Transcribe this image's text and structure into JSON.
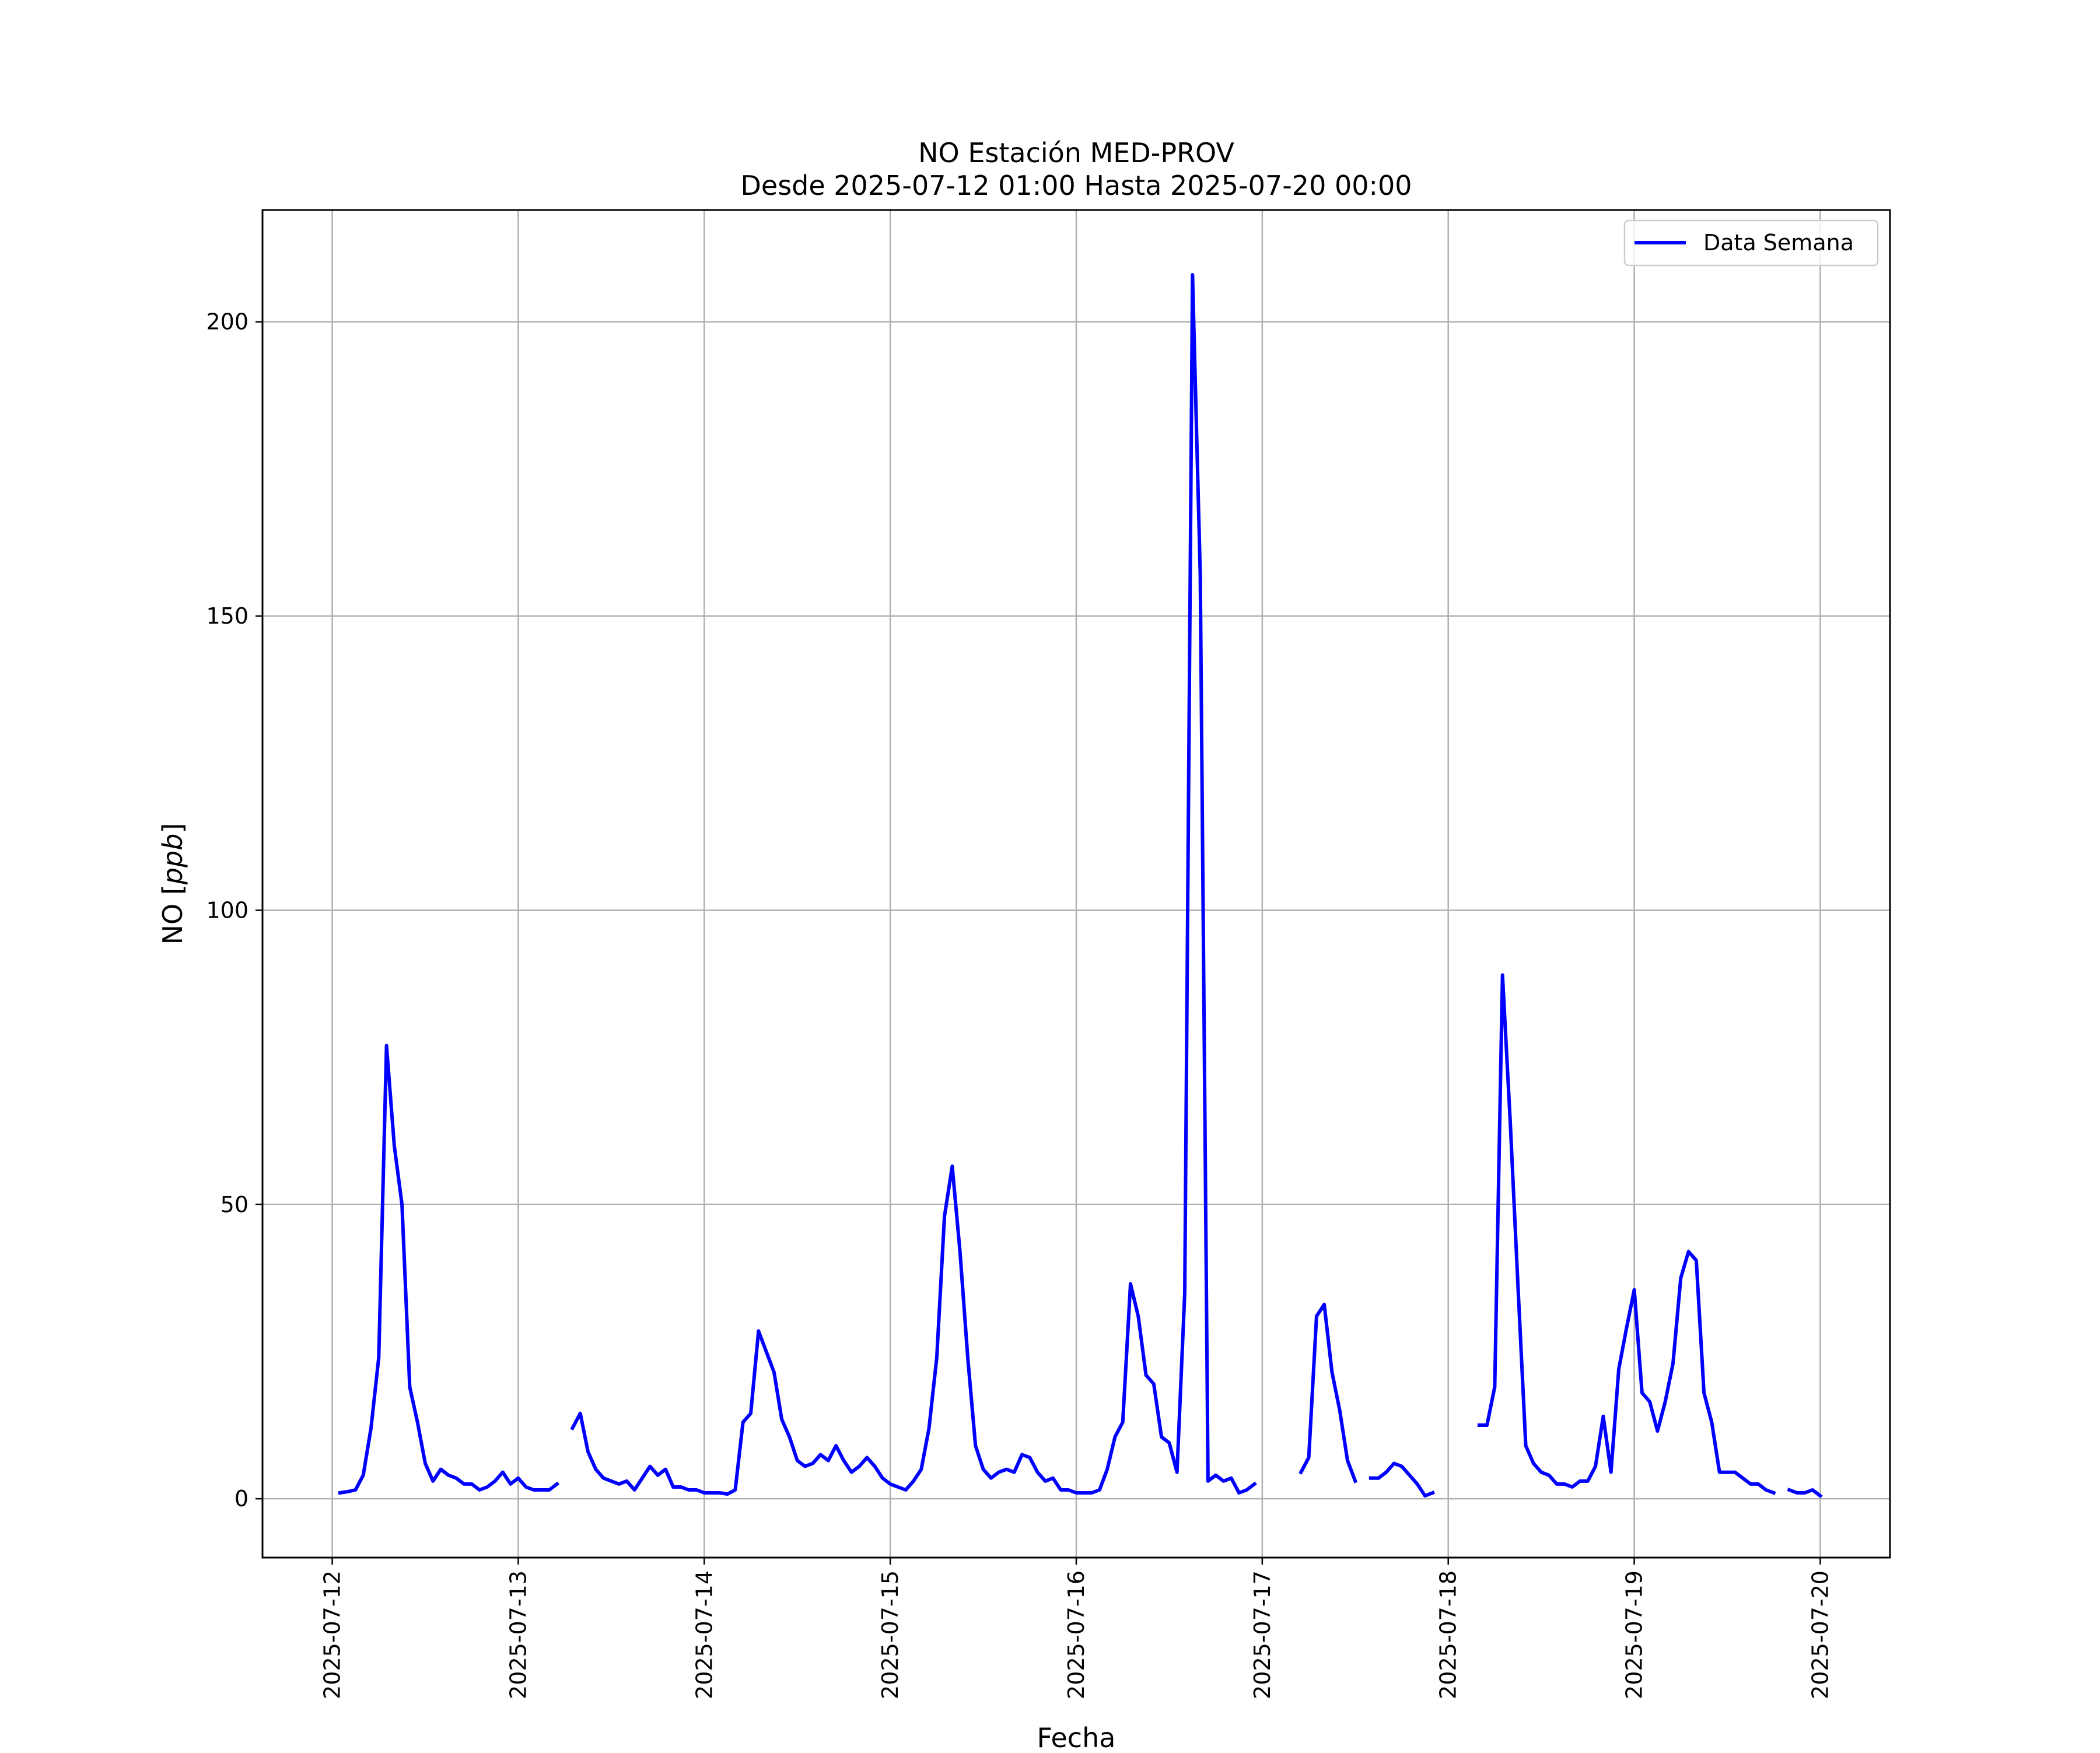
{
  "chart_data": {
    "type": "line",
    "title": "NO Estación MED-PROV",
    "subtitle": "Desde 2025-07-12 01:00 Hasta 2025-07-20 00:00",
    "xlabel": "Fecha",
    "ylabel": "NO [ppb]",
    "ylabel_main": "NO [",
    "ylabel_unit": "ppb",
    "ylabel_close": "]",
    "x_start": "2025-07-12 00:00",
    "xlim": [
      "2025-07-11 15:00",
      "2025-07-20 09:00"
    ],
    "ylim": [
      -10,
      219
    ],
    "x_ticks": [
      "2025-07-12",
      "2025-07-13",
      "2025-07-14",
      "2025-07-15",
      "2025-07-16",
      "2025-07-17",
      "2025-07-18",
      "2025-07-19",
      "2025-07-20"
    ],
    "y_ticks": [
      0,
      50,
      100,
      150,
      200
    ],
    "grid": true,
    "legend_position": "top-right",
    "line_color": "#0000ff",
    "series": [
      {
        "name": "Data Semana",
        "hours": [
          1,
          2,
          3,
          4,
          5,
          6,
          7,
          8,
          9,
          10,
          11,
          12,
          13,
          14,
          15,
          16,
          17,
          18,
          19,
          20,
          21,
          22,
          23,
          24,
          25,
          26,
          27,
          28,
          29,
          30,
          31,
          32,
          33,
          34,
          35,
          36,
          37,
          38,
          39,
          40,
          41,
          42,
          43,
          44,
          45,
          46,
          47,
          48,
          49,
          50,
          51,
          52,
          53,
          54,
          55,
          56,
          57,
          58,
          59,
          60,
          61,
          62,
          63,
          64,
          65,
          66,
          67,
          68,
          69,
          70,
          71,
          72,
          73,
          74,
          75,
          76,
          77,
          78,
          79,
          80,
          81,
          82,
          83,
          84,
          85,
          86,
          87,
          88,
          89,
          90,
          91,
          92,
          93,
          94,
          95,
          96,
          97,
          98,
          99,
          100,
          101,
          102,
          103,
          104,
          105,
          106,
          107,
          108,
          109,
          110,
          111,
          112,
          113,
          114,
          115,
          116,
          117,
          118,
          119,
          120,
          121,
          122,
          123,
          124,
          125,
          126,
          127,
          128,
          129,
          130,
          131,
          132,
          133,
          134,
          135,
          136,
          137,
          138,
          139,
          140,
          141,
          142,
          143,
          144,
          145,
          146,
          147,
          148,
          149,
          150,
          151,
          152,
          153,
          154,
          155,
          156,
          157,
          158,
          159,
          160,
          161,
          162,
          163,
          164,
          165,
          166,
          167,
          168,
          169,
          170,
          171,
          172,
          173,
          174,
          175,
          176,
          177,
          178,
          179,
          180,
          181,
          182,
          183,
          184,
          185,
          186,
          187,
          188,
          189,
          190,
          191,
          192
        ],
        "values": [
          1.0,
          1.2,
          1.5,
          4.0,
          12.0,
          24.0,
          77.0,
          60.0,
          50.0,
          19.0,
          13.0,
          6.0,
          3.0,
          5.0,
          4.0,
          3.5,
          2.5,
          2.5,
          1.5,
          2.0,
          3.0,
          4.5,
          2.5,
          3.5,
          2.0,
          1.5,
          1.5,
          1.5,
          2.5,
          null,
          12.0,
          14.5,
          8.0,
          5.0,
          3.5,
          3.0,
          2.5,
          3.0,
          1.5,
          3.5,
          5.5,
          4.0,
          5.0,
          2.0,
          2.0,
          1.5,
          1.5,
          1.0,
          1.0,
          1.0,
          0.8,
          1.5,
          13.0,
          14.5,
          28.5,
          25.0,
          21.5,
          13.5,
          10.5,
          6.5,
          5.5,
          6.0,
          7.5,
          6.5,
          9.0,
          6.5,
          4.5,
          5.5,
          7.0,
          5.5,
          3.5,
          2.5,
          2.0,
          1.5,
          3.0,
          5.0,
          12.0,
          24.0,
          48.0,
          56.5,
          42.0,
          24.0,
          9.0,
          5.0,
          3.5,
          4.5,
          5.0,
          4.5,
          7.5,
          7.0,
          4.5,
          3.0,
          3.5,
          1.5,
          1.5,
          1.0,
          1.0,
          1.0,
          1.5,
          5.0,
          10.5,
          13.0,
          36.5,
          31.0,
          21.0,
          19.5,
          10.5,
          9.5,
          4.5,
          35.0,
          208.0,
          157.0,
          3.0,
          4.0,
          3.0,
          3.5,
          1.0,
          1.5,
          2.5,
          null,
          null,
          null,
          null,
          null,
          4.5,
          7.0,
          31.0,
          33.0,
          21.5,
          15.0,
          6.5,
          3.0,
          null,
          3.5,
          3.5,
          4.5,
          6.0,
          5.5,
          4.0,
          2.5,
          0.5,
          1.0,
          null,
          null,
          null,
          null,
          null,
          12.5,
          12.5,
          19.0,
          89.0,
          64.0,
          36.0,
          9.0,
          6.0,
          4.5,
          4.0,
          2.5,
          2.5,
          2.0,
          3.0,
          3.0,
          5.5,
          14.0,
          4.5,
          22.0,
          29.0,
          35.5,
          18.0,
          16.5,
          11.5,
          16.5,
          23.0,
          37.5,
          42.0,
          40.5,
          18.0,
          13.0,
          4.5,
          4.5,
          4.5,
          3.5,
          2.5,
          2.5,
          1.5,
          1.0,
          null,
          1.5,
          1.0,
          1.0,
          1.5,
          0.5
        ]
      }
    ]
  }
}
